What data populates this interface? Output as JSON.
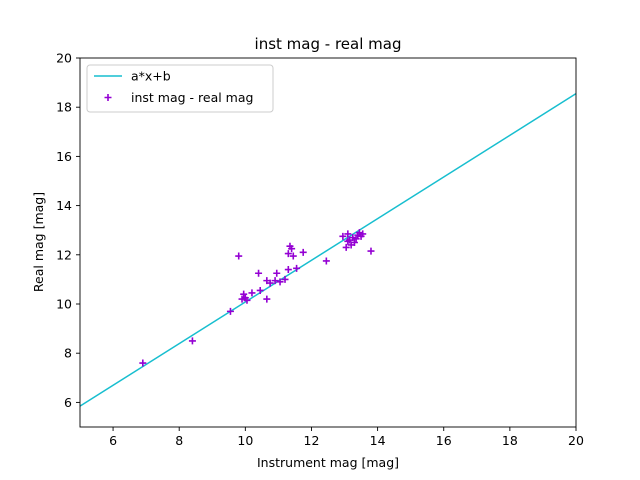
{
  "chart_data": {
    "type": "scatter",
    "title": "inst mag - real mag",
    "xlabel": "Instrument mag [mag]",
    "ylabel": "Real mag [mag]",
    "xlim": [
      5,
      20
    ],
    "ylim": [
      5,
      20
    ],
    "xticks": [
      6,
      8,
      10,
      12,
      14,
      16,
      18,
      20
    ],
    "yticks": [
      6,
      8,
      10,
      12,
      14,
      16,
      18,
      20
    ],
    "grid": false,
    "legend_position": "upper-left",
    "fit_line": {
      "name": "a*x+b",
      "color": "#17becf",
      "x": [
        5,
        20
      ],
      "y": [
        5.85,
        18.55
      ]
    },
    "series": [
      {
        "name": "inst mag - real mag",
        "marker": "plus",
        "color": "#9400d3",
        "points": [
          [
            6.9,
            7.6
          ],
          [
            8.4,
            8.5
          ],
          [
            9.55,
            9.7
          ],
          [
            9.8,
            11.95
          ],
          [
            9.9,
            10.2
          ],
          [
            9.95,
            10.4
          ],
          [
            10.0,
            10.25
          ],
          [
            10.05,
            10.15
          ],
          [
            10.2,
            10.45
          ],
          [
            10.4,
            11.25
          ],
          [
            10.45,
            10.55
          ],
          [
            10.65,
            10.2
          ],
          [
            10.65,
            10.95
          ],
          [
            10.75,
            10.85
          ],
          [
            10.9,
            10.95
          ],
          [
            10.95,
            11.25
          ],
          [
            11.05,
            10.9
          ],
          [
            11.2,
            11.0
          ],
          [
            11.3,
            11.4
          ],
          [
            11.3,
            12.05
          ],
          [
            11.35,
            12.35
          ],
          [
            11.4,
            12.25
          ],
          [
            11.45,
            11.95
          ],
          [
            11.55,
            11.45
          ],
          [
            11.75,
            12.1
          ],
          [
            12.45,
            11.75
          ],
          [
            12.95,
            12.75
          ],
          [
            13.05,
            12.3
          ],
          [
            13.1,
            12.55
          ],
          [
            13.1,
            12.85
          ],
          [
            13.15,
            12.6
          ],
          [
            13.2,
            12.4
          ],
          [
            13.25,
            12.7
          ],
          [
            13.3,
            12.5
          ],
          [
            13.35,
            12.65
          ],
          [
            13.4,
            12.8
          ],
          [
            13.45,
            12.9
          ],
          [
            13.5,
            12.75
          ],
          [
            13.55,
            12.85
          ],
          [
            13.8,
            12.15
          ]
        ]
      }
    ]
  }
}
